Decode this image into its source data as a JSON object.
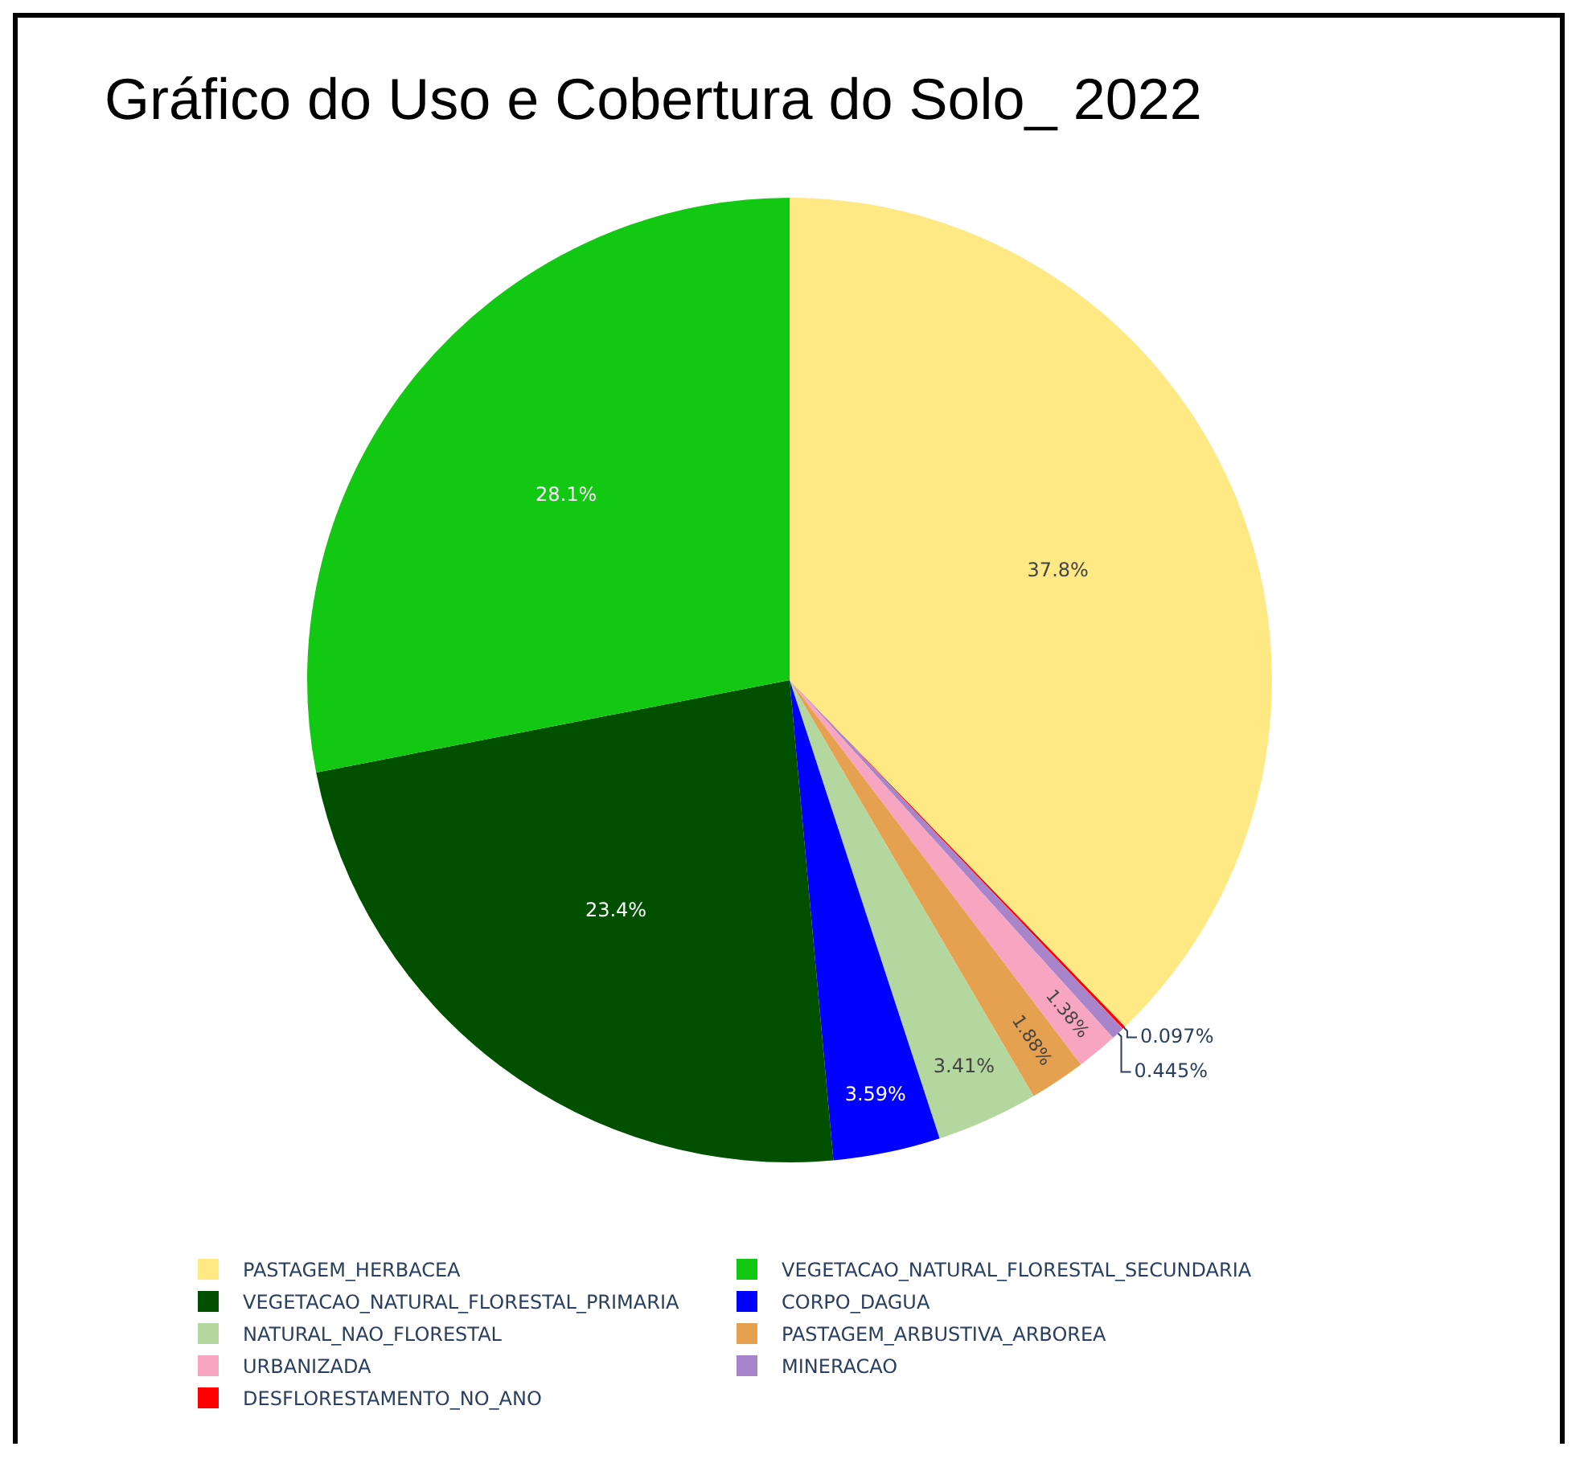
{
  "chart_data": {
    "type": "pie",
    "title": "Gráfico do Uso e Cobertura do Solo_ 2022",
    "categories": [
      "PASTAGEM_HERBACEA",
      "VEGETACAO_NATURAL_FLORESTAL_SECUNDARIA",
      "VEGETACAO_NATURAL_FLORESTAL_PRIMARIA",
      "CORPO_DAGUA",
      "NATURAL_NAO_FLORESTAL",
      "PASTAGEM_ARBUSTIVA_ARBOREA",
      "URBANIZADA",
      "MINERACAO",
      "DESFLORESTAMENTO_NO_ANO"
    ],
    "values": [
      37.8,
      28.1,
      23.4,
      3.59,
      3.41,
      1.88,
      1.38,
      0.445,
      0.097
    ],
    "colors": [
      "#ffe985",
      "#12c812",
      "#005000",
      "#0000ff",
      "#b4d69f",
      "#e5a050",
      "#f8a5c2",
      "#a885cb",
      "#ff0000"
    ],
    "value_labels": [
      "37.8%",
      "28.1%",
      "23.4%",
      "3.59%",
      "3.41%",
      "1.88%",
      "1.38%",
      "0.445%",
      "0.097%"
    ],
    "legend": "bottom"
  }
}
